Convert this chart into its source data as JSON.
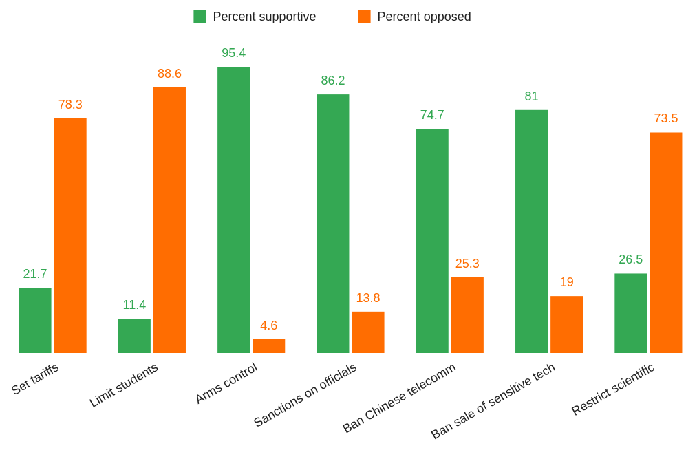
{
  "chart_data": {
    "type": "bar",
    "categories": [
      "Set tariffs",
      "Limit students",
      "Arms control",
      "Sanctions on officials",
      "Ban Chinese telecomm",
      "Ban sale of sensitive tech",
      "Restrict scientific"
    ],
    "series": [
      {
        "name": "Percent supportive",
        "color": "#34a853",
        "values": [
          21.7,
          11.4,
          95.4,
          86.2,
          74.7,
          81,
          26.5
        ]
      },
      {
        "name": "Percent opposed",
        "color": "#ff6d01",
        "values": [
          78.3,
          88.6,
          4.6,
          13.8,
          25.3,
          19,
          73.5
        ]
      }
    ],
    "data_labels": true,
    "legend": "top"
  }
}
